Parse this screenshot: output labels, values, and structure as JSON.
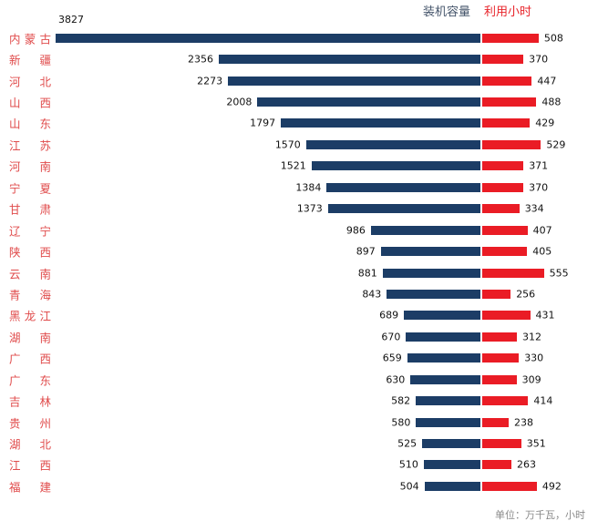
{
  "chart_data": {
    "type": "bar",
    "variant": "diverging-horizontal",
    "categories": [
      "内蒙古",
      "新疆",
      "河北",
      "山西",
      "山东",
      "江苏",
      "河南",
      "宁夏",
      "甘肃",
      "辽宁",
      "陕西",
      "云南",
      "青海",
      "黑龙江",
      "湖南",
      "广西",
      "广东",
      "吉林",
      "贵州",
      "湖北",
      "江西",
      "福建"
    ],
    "series": [
      {
        "name": "装机容量",
        "direction": "left",
        "color": "#1C3D66",
        "values": [
          3827,
          2356,
          2273,
          2008,
          1797,
          1570,
          1521,
          1384,
          1373,
          986,
          897,
          881,
          843,
          689,
          670,
          659,
          630,
          582,
          580,
          525,
          510,
          504
        ]
      },
      {
        "name": "利用小时",
        "direction": "right",
        "color": "#EA1C25",
        "values": [
          508,
          370,
          447,
          488,
          429,
          529,
          371,
          370,
          334,
          407,
          405,
          555,
          256,
          431,
          312,
          330,
          309,
          414,
          238,
          351,
          263,
          492
        ]
      }
    ],
    "footnote": "单位：万千瓦，小时",
    "grid": false,
    "legend_position": "top-center",
    "category_label_color": "#E04B4B",
    "value_label_color": "#111111"
  }
}
